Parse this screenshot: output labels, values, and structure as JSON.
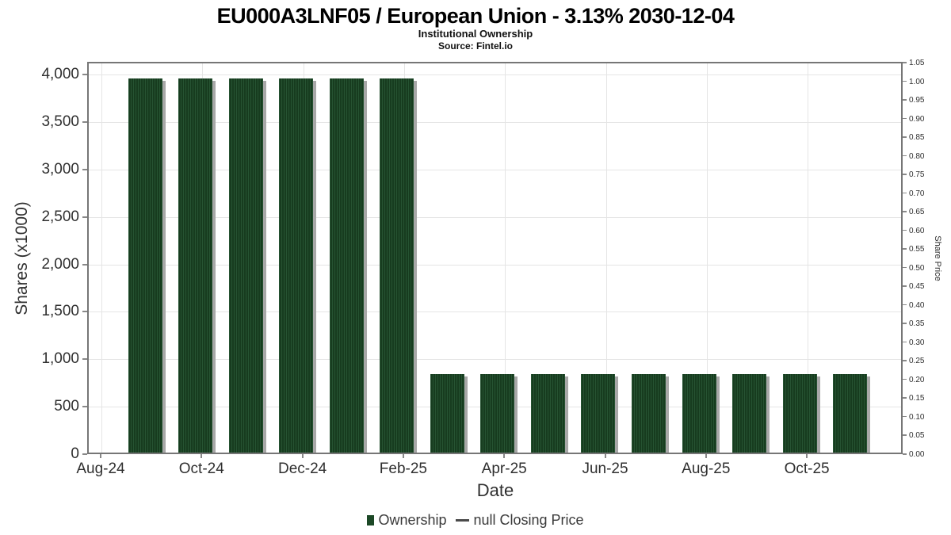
{
  "header": {
    "title": "EU000A3LNF05 / European Union - 3.13% 2030-12-04",
    "subtitle": "Institutional Ownership",
    "source": "Source: Fintel.io"
  },
  "chart_data": {
    "type": "bar",
    "title": "EU000A3LNF05 / European Union - 3.13% 2030-12-04",
    "subtitle": "Institutional Ownership",
    "source": "Source: Fintel.io",
    "xlabel": "Date",
    "ylabel_left": "Shares (x1000)",
    "ylabel_right": "Share Price",
    "categories": [
      "Aug-24",
      "Sep-24",
      "Oct-24",
      "Nov-24",
      "Dec-24",
      "Jan-25",
      "Feb-25",
      "Mar-25",
      "Apr-25",
      "May-25",
      "Jun-25",
      "Jul-25",
      "Aug-25",
      "Sep-25",
      "Oct-25"
    ],
    "series": [
      {
        "name": "Ownership",
        "values": [
          3944,
          3944,
          3944,
          3944,
          3944,
          3944,
          831,
          831,
          831,
          831,
          831,
          831,
          831,
          831,
          831
        ]
      }
    ],
    "left_axis": {
      "min": 0,
      "max": 4000,
      "step": 500,
      "tick_labels": [
        "0",
        "500",
        "1,000",
        "1,500",
        "2,000",
        "2,500",
        "3,000",
        "3,500",
        "4,000"
      ]
    },
    "right_axis": {
      "min": 0.0,
      "max": 1.05,
      "step": 0.05,
      "tick_labels": [
        "0.00",
        "0.05",
        "0.10",
        "0.15",
        "0.20",
        "0.25",
        "0.30",
        "0.35",
        "0.40",
        "0.45",
        "0.50",
        "0.55",
        "0.60",
        "0.65",
        "0.70",
        "0.75",
        "0.80",
        "0.85",
        "0.90",
        "0.95",
        "1.00",
        "1.05"
      ]
    },
    "x_axis": {
      "tick_labels": [
        "Aug-24",
        "Oct-24",
        "Dec-24",
        "Feb-25",
        "Apr-25",
        "Jun-25",
        "Aug-25",
        "Oct-25"
      ]
    },
    "legend": [
      {
        "label": "Ownership",
        "marker": "square",
        "color": "#1c4826"
      },
      {
        "label": "null Closing Price",
        "marker": "line",
        "color": "#4a4a4a"
      }
    ],
    "grid": true,
    "legend_position": "bottom"
  },
  "colors": {
    "bar_stripe_light": "#265332",
    "bar_stripe_dark": "#173c1f",
    "bar_shadow": "#a8a8a8",
    "grid_line": "#e5e5e5",
    "plot_border": "#767676",
    "tick_text": "#2f2f2f",
    "title_text": "#000000"
  }
}
